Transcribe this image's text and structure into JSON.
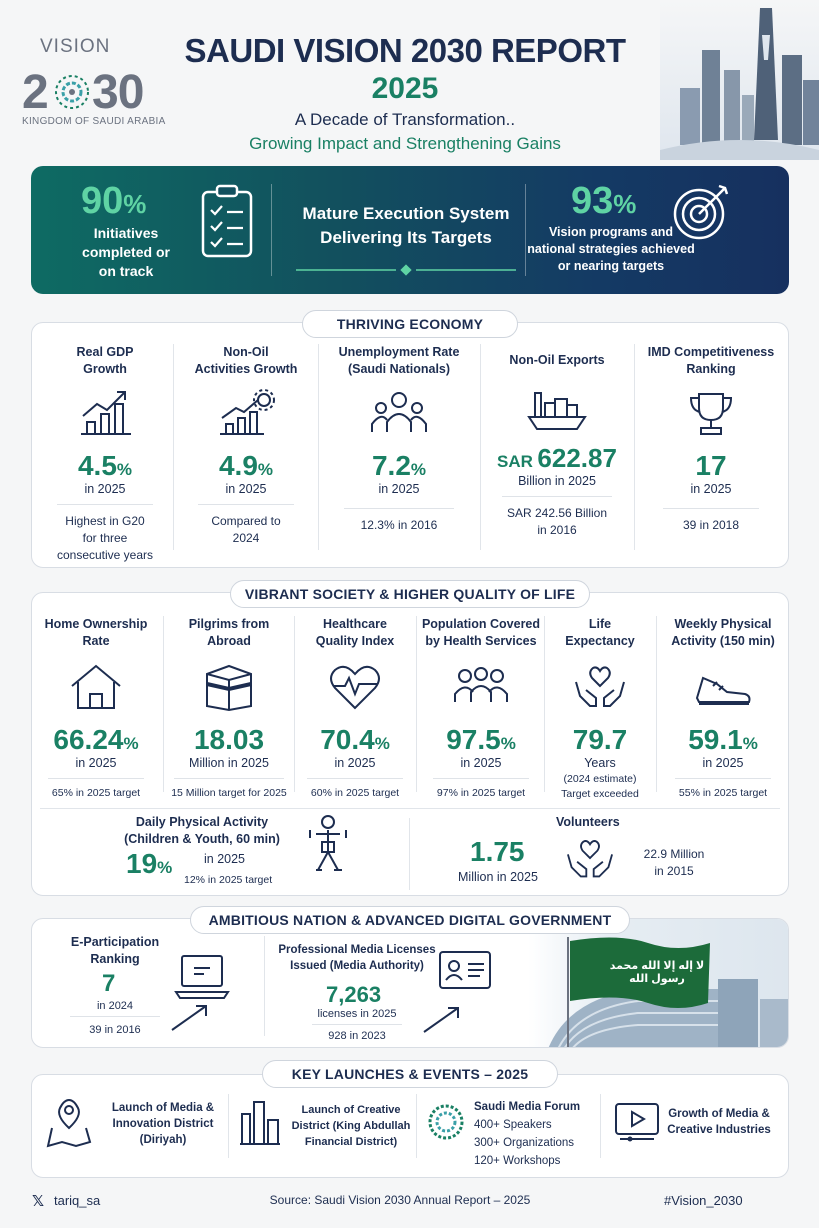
{
  "logo": {
    "vision": "VISION",
    "year": "2030",
    "country": "KINGDOM OF SAUDI ARABIA"
  },
  "header": {
    "title": "SAUDI VISION 2030 REPORT",
    "year": "2025",
    "subtitle1": "A Decade of Transformation..",
    "subtitle2": "Growing Impact and Strengthening Gains"
  },
  "banner": {
    "left_value": "90",
    "left_unit": "%",
    "left_text": [
      "Initiatives",
      "completed or",
      "on track"
    ],
    "center_text": [
      "Mature Execution System",
      "Delivering Its Targets"
    ],
    "right_value": "93",
    "right_unit": "%",
    "right_text": [
      "Vision programs and",
      "national strategies achieved",
      "or nearing targets"
    ]
  },
  "economy": {
    "title": "THRIVING ECONOMY",
    "items": [
      {
        "label": [
          "Real GDP",
          "Growth"
        ],
        "value": "4.5",
        "unit": "%",
        "period": "in 2025",
        "note": [
          "Highest in G20",
          "for three",
          "consecutive years"
        ]
      },
      {
        "label": [
          "Non-Oil",
          "Activities Growth"
        ],
        "value": "4.9",
        "unit": "%",
        "period": "in 2025",
        "note": [
          "Compared to",
          "2024"
        ]
      },
      {
        "label": [
          "Unemployment Rate",
          "(Saudi Nationals)"
        ],
        "value": "7.2",
        "unit": "%",
        "period": "in 2025",
        "note": [
          "12.3% in 2016"
        ]
      },
      {
        "label": [
          "Non-Oil Exports"
        ],
        "prefix": "SAR",
        "value": "622.87",
        "unit": "",
        "period": "Billion in 2025",
        "note": [
          "SAR 242.56 Billion",
          "in 2016"
        ]
      },
      {
        "label": [
          "IMD Competitiveness",
          "Ranking"
        ],
        "value": "17",
        "unit": "",
        "period": "in 2025",
        "note": [
          "39 in 2018"
        ]
      }
    ]
  },
  "society": {
    "title": "VIBRANT SOCIETY & HIGHER QUALITY OF LIFE",
    "items": [
      {
        "label": [
          "Home Ownership",
          "Rate"
        ],
        "value": "66.24",
        "unit": "%",
        "period": "in 2025",
        "note": [
          "65% in 2025 target"
        ]
      },
      {
        "label": [
          "Pilgrims from",
          "Abroad"
        ],
        "value": "18.03",
        "unit": "",
        "period": "Million in 2025",
        "note": [
          "15 Million target for 2025"
        ]
      },
      {
        "label": [
          "Healthcare",
          "Quality Index"
        ],
        "value": "70.4",
        "unit": "%",
        "period": "in 2025",
        "note": [
          "60% in 2025 target"
        ]
      },
      {
        "label": [
          "Population Covered",
          "by Health Services"
        ],
        "value": "97.5",
        "unit": "%",
        "period": "in 2025",
        "note": [
          "97% in 2025 target"
        ]
      },
      {
        "label": [
          "Life",
          "Expectancy"
        ],
        "value": "79.7",
        "unit": "",
        "period": "Years",
        "note": [
          "(2024 estimate)",
          "Target exceeded"
        ]
      },
      {
        "label": [
          "Weekly Physical",
          "Activity (150 min)"
        ],
        "value": "59.1",
        "unit": "%",
        "period": "in 2025",
        "note": [
          "55% in 2025 target"
        ]
      }
    ],
    "daily": {
      "label": [
        "Daily Physical Activity",
        "(Children & Youth, 60 min)"
      ],
      "value": "19",
      "unit": "%",
      "period": "in 2025",
      "note": "12% in 2025 target"
    },
    "volunteers": {
      "label": "Volunteers",
      "value": "1.75",
      "period": "Million in 2025",
      "note": [
        "22.9 Million",
        "in 2015"
      ]
    }
  },
  "nation": {
    "title": "AMBITIOUS NATION & ADVANCED DIGITAL GOVERNMENT",
    "eparticipation": {
      "label": [
        "E-Participation",
        "Ranking"
      ],
      "value": "7",
      "period": "in 2024",
      "note": "39 in 2016"
    },
    "media": {
      "label": [
        "Professional Media Licenses",
        "Issued (Media Authority)"
      ],
      "value": "7,263",
      "period": "licenses in 2025",
      "note": "928 in 2023"
    },
    "flag_text": "لا إله إلا الله محمد رسول الله"
  },
  "launches": {
    "title": "KEY LAUNCHES & EVENTS – 2025",
    "items": [
      {
        "text": [
          "Launch of Media &",
          "Innovation District",
          "(Diriyah)"
        ]
      },
      {
        "text": [
          "Launch of Creative",
          "District (King Abdullah",
          "Financial District)"
        ]
      },
      {
        "text": [
          "Saudi Media Forum",
          "400+ Speakers",
          "300+ Organizations",
          "120+ Workshops"
        ]
      },
      {
        "text": [
          "Growth of Media &",
          "Creative Industries"
        ]
      }
    ]
  },
  "footer": {
    "handle": "tariq_sa",
    "source": "Source: Saudi Vision 2030 Annual Report – 2025",
    "hashtag": "#Vision_2030"
  },
  "colors": {
    "navy": "#1d2d50",
    "green": "#1a8064",
    "accent": "#5fd3a4"
  }
}
